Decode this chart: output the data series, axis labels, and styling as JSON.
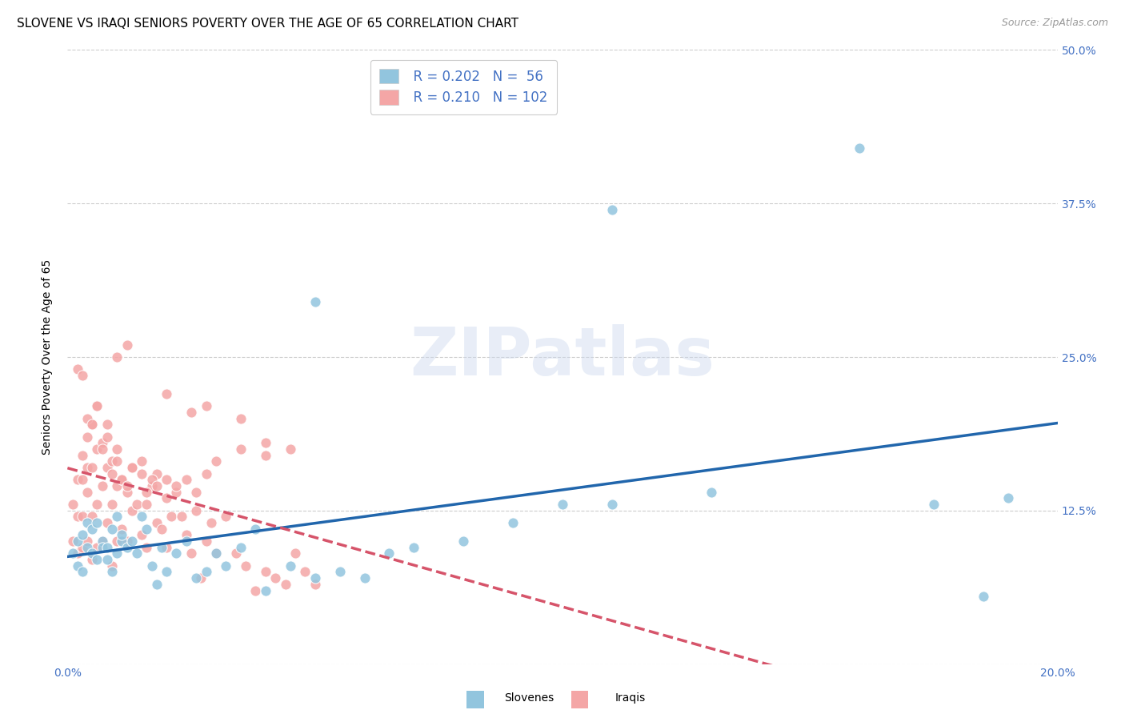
{
  "title": "SLOVENE VS IRAQI SENIORS POVERTY OVER THE AGE OF 65 CORRELATION CHART",
  "source": "Source: ZipAtlas.com",
  "ylabel": "Seniors Poverty Over the Age of 65",
  "xlim": [
    0.0,
    0.2
  ],
  "ylim": [
    0.0,
    0.5
  ],
  "ytick_positions": [
    0.0,
    0.125,
    0.25,
    0.375,
    0.5
  ],
  "ytick_labels": [
    "",
    "12.5%",
    "25.0%",
    "37.5%",
    "50.0%"
  ],
  "xtick_positions": [
    0.0,
    0.02,
    0.04,
    0.06,
    0.08,
    0.1,
    0.12,
    0.14,
    0.16,
    0.18,
    0.2
  ],
  "xtick_labels": [
    "0.0%",
    "",
    "",
    "",
    "",
    "",
    "",
    "",
    "",
    "",
    "20.0%"
  ],
  "watermark": "ZIPatlas",
  "legend_r1": "R = 0.202",
  "legend_n1": "N =  56",
  "legend_r2": "R = 0.210",
  "legend_n2": "N = 102",
  "slovene_color": "#92c5de",
  "iraqi_color": "#f4a6a6",
  "slovene_trend_color": "#2166ac",
  "iraqi_trend_color": "#d6546a",
  "background_color": "#ffffff",
  "grid_color": "#cccccc",
  "title_fontsize": 11,
  "label_fontsize": 10,
  "tick_color": "#4472c4",
  "slovene_x": [
    0.001,
    0.002,
    0.002,
    0.003,
    0.003,
    0.004,
    0.004,
    0.005,
    0.005,
    0.006,
    0.006,
    0.007,
    0.007,
    0.008,
    0.008,
    0.009,
    0.009,
    0.01,
    0.01,
    0.011,
    0.011,
    0.012,
    0.013,
    0.014,
    0.015,
    0.016,
    0.017,
    0.018,
    0.019,
    0.02,
    0.022,
    0.024,
    0.026,
    0.028,
    0.03,
    0.032,
    0.035,
    0.038,
    0.04,
    0.045,
    0.05,
    0.055,
    0.06,
    0.065,
    0.07,
    0.08,
    0.09,
    0.1,
    0.11,
    0.13,
    0.05,
    0.11,
    0.16,
    0.175,
    0.185,
    0.19
  ],
  "slovene_y": [
    0.09,
    0.1,
    0.08,
    0.105,
    0.075,
    0.095,
    0.115,
    0.09,
    0.11,
    0.085,
    0.115,
    0.1,
    0.095,
    0.085,
    0.095,
    0.075,
    0.11,
    0.12,
    0.09,
    0.1,
    0.105,
    0.095,
    0.1,
    0.09,
    0.12,
    0.11,
    0.08,
    0.065,
    0.095,
    0.075,
    0.09,
    0.1,
    0.07,
    0.075,
    0.09,
    0.08,
    0.095,
    0.11,
    0.06,
    0.08,
    0.07,
    0.075,
    0.07,
    0.09,
    0.095,
    0.1,
    0.115,
    0.13,
    0.13,
    0.14,
    0.295,
    0.37,
    0.42,
    0.13,
    0.055,
    0.135
  ],
  "iraqi_x": [
    0.001,
    0.001,
    0.002,
    0.002,
    0.002,
    0.003,
    0.003,
    0.003,
    0.003,
    0.004,
    0.004,
    0.004,
    0.004,
    0.005,
    0.005,
    0.005,
    0.005,
    0.006,
    0.006,
    0.006,
    0.006,
    0.007,
    0.007,
    0.007,
    0.008,
    0.008,
    0.008,
    0.009,
    0.009,
    0.009,
    0.01,
    0.01,
    0.01,
    0.011,
    0.011,
    0.012,
    0.012,
    0.013,
    0.013,
    0.014,
    0.015,
    0.015,
    0.016,
    0.016,
    0.017,
    0.018,
    0.018,
    0.019,
    0.02,
    0.02,
    0.021,
    0.022,
    0.023,
    0.024,
    0.025,
    0.026,
    0.027,
    0.028,
    0.029,
    0.03,
    0.032,
    0.034,
    0.036,
    0.038,
    0.04,
    0.042,
    0.044,
    0.046,
    0.048,
    0.05,
    0.002,
    0.003,
    0.004,
    0.005,
    0.006,
    0.007,
    0.008,
    0.009,
    0.01,
    0.011,
    0.012,
    0.013,
    0.015,
    0.016,
    0.017,
    0.018,
    0.02,
    0.022,
    0.024,
    0.026,
    0.028,
    0.03,
    0.035,
    0.04,
    0.02,
    0.025,
    0.028,
    0.035,
    0.04,
    0.045,
    0.01,
    0.012
  ],
  "iraqi_y": [
    0.1,
    0.13,
    0.09,
    0.12,
    0.15,
    0.095,
    0.12,
    0.15,
    0.17,
    0.1,
    0.14,
    0.16,
    0.185,
    0.085,
    0.12,
    0.16,
    0.195,
    0.095,
    0.13,
    0.175,
    0.21,
    0.1,
    0.145,
    0.18,
    0.115,
    0.16,
    0.195,
    0.08,
    0.13,
    0.165,
    0.1,
    0.145,
    0.175,
    0.11,
    0.15,
    0.1,
    0.14,
    0.125,
    0.16,
    0.13,
    0.105,
    0.165,
    0.095,
    0.13,
    0.145,
    0.115,
    0.155,
    0.11,
    0.095,
    0.135,
    0.12,
    0.14,
    0.12,
    0.105,
    0.09,
    0.125,
    0.07,
    0.1,
    0.115,
    0.09,
    0.12,
    0.09,
    0.08,
    0.06,
    0.075,
    0.07,
    0.065,
    0.09,
    0.075,
    0.065,
    0.24,
    0.235,
    0.2,
    0.195,
    0.21,
    0.175,
    0.185,
    0.155,
    0.165,
    0.15,
    0.145,
    0.16,
    0.155,
    0.14,
    0.15,
    0.145,
    0.15,
    0.145,
    0.15,
    0.14,
    0.155,
    0.165,
    0.175,
    0.17,
    0.22,
    0.205,
    0.21,
    0.2,
    0.18,
    0.175,
    0.25,
    0.26
  ]
}
